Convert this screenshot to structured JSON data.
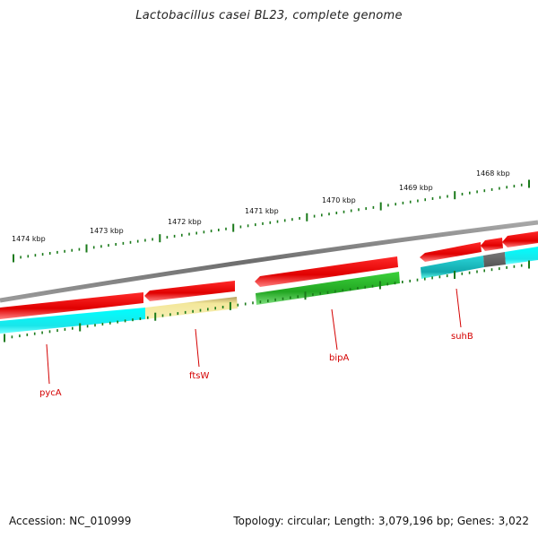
{
  "title": "Lactobacillus casei BL23, complete genome",
  "footer": {
    "accession": "Accession: NC_010999",
    "summary": "Topology: circular; Length: 3,079,196 bp; Genes: 3,022"
  },
  "kbp_labels": [
    "1474 kbp",
    "1473 kbp",
    "1472 kbp",
    "1471 kbp",
    "1470 kbp",
    "1469 kbp",
    "1468 kbp"
  ],
  "gene_labels": [
    "pycA",
    "ftsW",
    "bipA",
    "suhB"
  ],
  "colors": {
    "backbone": "#808080",
    "cds_forward": "#ff0000",
    "cog_cyan": "#00ffff",
    "cog_teal": "#1fc8cc",
    "cog_yellow": "#f2e28a",
    "cog_green": "#2db82d",
    "cog_gray": "#666666",
    "tick": "#1a7a1a",
    "label": "#d40000"
  }
}
